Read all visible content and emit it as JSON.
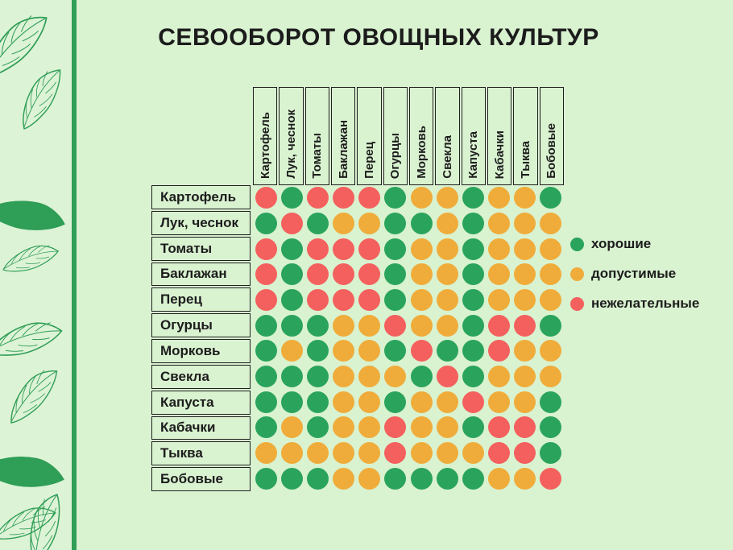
{
  "title": "СЕВООБОРОТ ОВОЩНЫХ КУЛЬТУР",
  "legend": [
    {
      "key": "good",
      "label": "хорошие",
      "color": "#2aa45c"
    },
    {
      "key": "acceptable",
      "label": "допустимые",
      "color": "#f0ac3a"
    },
    {
      "key": "undesirable",
      "label": "нежелательные",
      "color": "#f4605e"
    }
  ],
  "chart_data": {
    "type": "heatmap",
    "title": "СЕВООБОРОТ ОВОЩНЫХ КУЛЬТУР",
    "columns": [
      "Картофель",
      "Лук, чеснок",
      "Томаты",
      "Баклажан",
      "Перец",
      "Огурцы",
      "Морковь",
      "Свекла",
      "Капуста",
      "Кабачки",
      "Тыква",
      "Бобовые"
    ],
    "rows": [
      "Картофель",
      "Лук, чеснок",
      "Томаты",
      "Баклажан",
      "Перец",
      "Огурцы",
      "Морковь",
      "Свекла",
      "Капуста",
      "Кабачки",
      "Тыква",
      "Бобовые"
    ],
    "value_legend": {
      "G": "хорошие",
      "Y": "допустимые",
      "R": "нежелательные"
    },
    "values": [
      [
        "R",
        "G",
        "R",
        "R",
        "R",
        "G",
        "Y",
        "Y",
        "G",
        "Y",
        "Y",
        "G"
      ],
      [
        "G",
        "R",
        "G",
        "Y",
        "Y",
        "G",
        "G",
        "Y",
        "G",
        "Y",
        "Y",
        "Y"
      ],
      [
        "R",
        "G",
        "R",
        "R",
        "R",
        "G",
        "Y",
        "Y",
        "G",
        "Y",
        "Y",
        "Y"
      ],
      [
        "R",
        "G",
        "R",
        "R",
        "R",
        "G",
        "Y",
        "Y",
        "G",
        "Y",
        "Y",
        "Y"
      ],
      [
        "R",
        "G",
        "R",
        "R",
        "R",
        "G",
        "Y",
        "Y",
        "G",
        "Y",
        "Y",
        "Y"
      ],
      [
        "G",
        "G",
        "G",
        "Y",
        "Y",
        "R",
        "Y",
        "Y",
        "G",
        "R",
        "R",
        "G"
      ],
      [
        "G",
        "Y",
        "G",
        "Y",
        "Y",
        "G",
        "R",
        "G",
        "G",
        "R",
        "Y",
        "Y"
      ],
      [
        "G",
        "G",
        "G",
        "Y",
        "Y",
        "Y",
        "G",
        "R",
        "G",
        "Y",
        "Y",
        "Y"
      ],
      [
        "G",
        "G",
        "G",
        "Y",
        "Y",
        "G",
        "Y",
        "Y",
        "R",
        "Y",
        "Y",
        "G"
      ],
      [
        "G",
        "Y",
        "G",
        "Y",
        "Y",
        "R",
        "Y",
        "Y",
        "G",
        "R",
        "R",
        "G"
      ],
      [
        "Y",
        "Y",
        "Y",
        "Y",
        "Y",
        "R",
        "Y",
        "Y",
        "Y",
        "R",
        "R",
        "G"
      ],
      [
        "G",
        "G",
        "G",
        "Y",
        "Y",
        "G",
        "G",
        "G",
        "G",
        "Y",
        "Y",
        "R"
      ]
    ],
    "legend_position": "right",
    "grid": false
  },
  "colors": {
    "good": "#2aa45c",
    "acceptable": "#f0ac3a",
    "undesirable": "#f4605e",
    "background": "#d9f2d0",
    "sidebar_background": "#ddf3d6",
    "accent_green": "#2f9e56",
    "border": "#1f1f1f",
    "text": "#1c1c1c"
  }
}
